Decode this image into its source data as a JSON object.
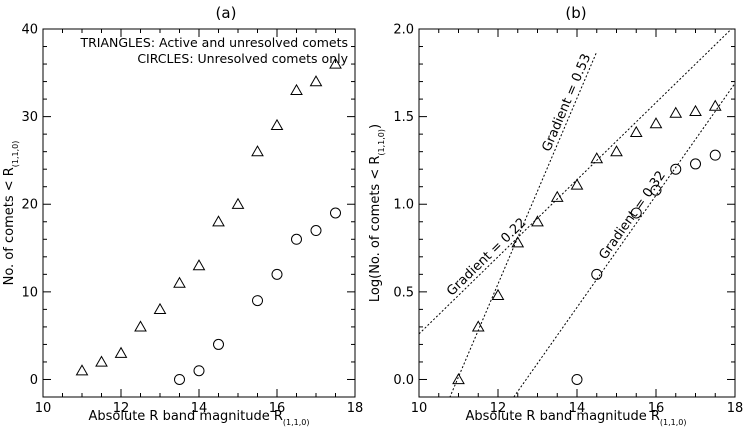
{
  "chart_data": [
    {
      "type": "scatter",
      "title": "(a)",
      "xlabel": "Absolute R band magnitude R",
      "xlabel_sub": "(1,1,0)",
      "ylabel": "No. of comets < R",
      "ylabel_sub": "(1,1,0)",
      "xlim": [
        10,
        18
      ],
      "ylim": [
        -2,
        40
      ],
      "xticks": [
        10,
        12,
        14,
        16,
        18
      ],
      "yticks": [
        0,
        10,
        20,
        30,
        40
      ],
      "legend_text": [
        "TRIANGLES: Active and unresolved comets",
        "CIRCLES: Unresolved comets only"
      ],
      "series": [
        {
          "marker": "triangle",
          "x": [
            11.0,
            11.5,
            12.0,
            12.5,
            13.0,
            13.5,
            14.0,
            14.5,
            15.0,
            15.5,
            16.0,
            16.5,
            17.0,
            17.5
          ],
          "y": [
            1,
            2,
            3,
            6,
            8,
            11,
            13,
            18,
            20,
            26,
            29,
            33,
            34,
            36
          ]
        },
        {
          "marker": "circle",
          "x": [
            13.5,
            14.0,
            14.5,
            15.5,
            16.0,
            16.5,
            17.0,
            17.5
          ],
          "y": [
            0,
            1,
            4,
            9,
            12,
            16,
            17,
            19
          ]
        }
      ]
    },
    {
      "type": "scatter",
      "title": "(b)",
      "xlabel": "Absolute R band magnitude R",
      "xlabel_sub": "(1,1,0)",
      "ylabel": "Log(No. of comets < R",
      "ylabel_sub": "(1,1,0)",
      "ylabel_end": ")",
      "xlim": [
        10,
        18
      ],
      "ylim": [
        -0.1,
        2.0
      ],
      "xticks": [
        10,
        12,
        14,
        16,
        18
      ],
      "yticks": [
        0.0,
        0.5,
        1.0,
        1.5,
        2.0
      ],
      "ytick_labels": [
        "0.0",
        "0.5",
        "1.0",
        "1.5",
        "2.0"
      ],
      "series": [
        {
          "marker": "triangle",
          "x": [
            11.0,
            11.5,
            12.0,
            12.5,
            13.0,
            13.5,
            14.0,
            14.5,
            15.0,
            15.5,
            16.0,
            16.5,
            17.0,
            17.5
          ],
          "y": [
            0.0,
            0.3,
            0.48,
            0.78,
            0.9,
            1.04,
            1.11,
            1.26,
            1.3,
            1.41,
            1.46,
            1.52,
            1.53,
            1.56
          ]
        },
        {
          "marker": "circle",
          "x": [
            14.0,
            14.5,
            15.5,
            16.0,
            16.5,
            17.0,
            17.5
          ],
          "y": [
            0.0,
            0.6,
            0.95,
            1.08,
            1.2,
            1.23,
            1.28
          ]
        }
      ],
      "fits": [
        {
          "label": "Gradient = 0.53",
          "x": [
            10.5,
            14.5
          ],
          "y": [
            -0.25,
            1.87
          ]
        },
        {
          "label": "Gradient = 0.22",
          "x": [
            10.0,
            18.0
          ],
          "y": [
            0.26,
            2.02
          ]
        },
        {
          "label": "Gradient = 0.32",
          "x": [
            12.4,
            18.0
          ],
          "y": [
            -0.1,
            1.69
          ]
        }
      ]
    }
  ]
}
